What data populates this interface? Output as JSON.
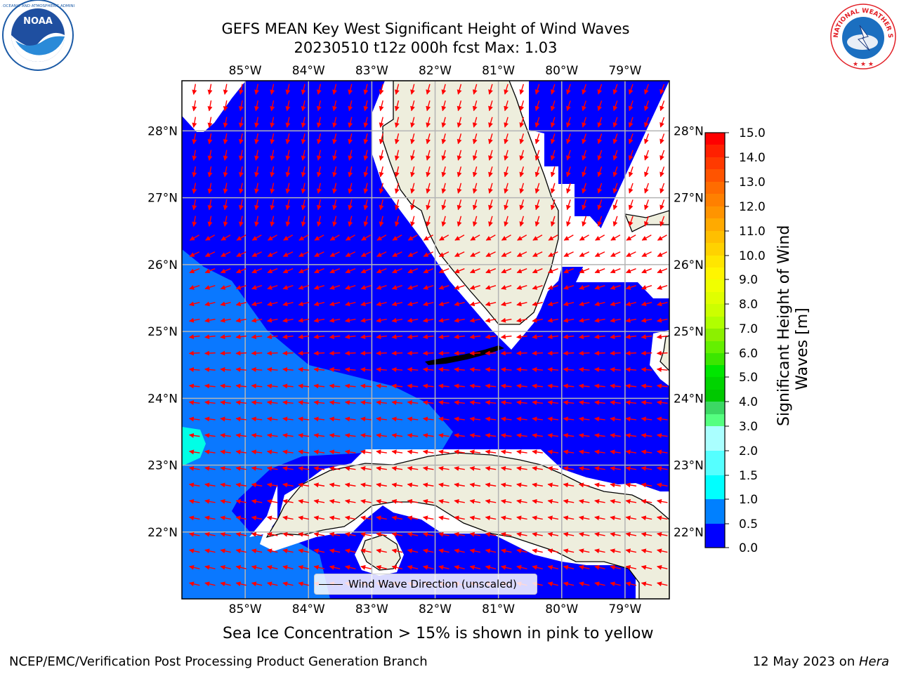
{
  "title": {
    "line1": "GEFS MEAN Key West Significant Height of Wind Waves",
    "line2": "20230510 t12z 000h fcst   Max: 1.03"
  },
  "map": {
    "lon_ticks": [
      "85°W",
      "84°W",
      "83°W",
      "82°W",
      "81°W",
      "80°W",
      "79°W"
    ],
    "lat_ticks": [
      "28°N",
      "27°N",
      "26°N",
      "25°N",
      "24°N",
      "23°N",
      "22°N"
    ],
    "lon_range": [
      -86.0,
      -78.3
    ],
    "lat_range": [
      21.0,
      28.75
    ],
    "grid": true,
    "land_color": "#eeeedd",
    "no_data_color": "#ffffff",
    "arrow_color": "#ff0000"
  },
  "legend": {
    "label": "Wind Wave Direction (unscaled)"
  },
  "colorbar": {
    "label_line1": "Significant Height of Wind",
    "label_line2": "Waves [m]",
    "ticks": [
      "15.0",
      "14.0",
      "13.0",
      "12.0",
      "11.0",
      "10.0",
      "9.0",
      "8.0",
      "7.0",
      "6.0",
      "5.0",
      "4.0",
      "3.0",
      "2.0",
      "1.5",
      "1.0",
      "0.5",
      "0.0"
    ],
    "colors_top_to_bottom": [
      "#ff0000",
      "#ff2000",
      "#ff4800",
      "#ff6c00",
      "#ff8c00",
      "#ffae00",
      "#ffd000",
      "#ffef00",
      "#f0ff00",
      "#d0ff00",
      "#a8ff00",
      "#64f000",
      "#00e600",
      "#00c800",
      "#55ff80",
      "#aaffff",
      "#55ffff",
      "#00ffff",
      "#00e8ff",
      "#0078ff",
      "#0000ff"
    ]
  },
  "notes": {
    "ice": "Sea Ice Concentration > 15% is shown in pink to yellow"
  },
  "footer": {
    "left": "NCEP/EMC/Verification Post Processing Product Generation Branch",
    "right_date": "12 May 2023 on ",
    "right_host": "Hera"
  },
  "logos": {
    "left": "NOAA",
    "right": "NATIONAL WEATHER SERVICE"
  }
}
